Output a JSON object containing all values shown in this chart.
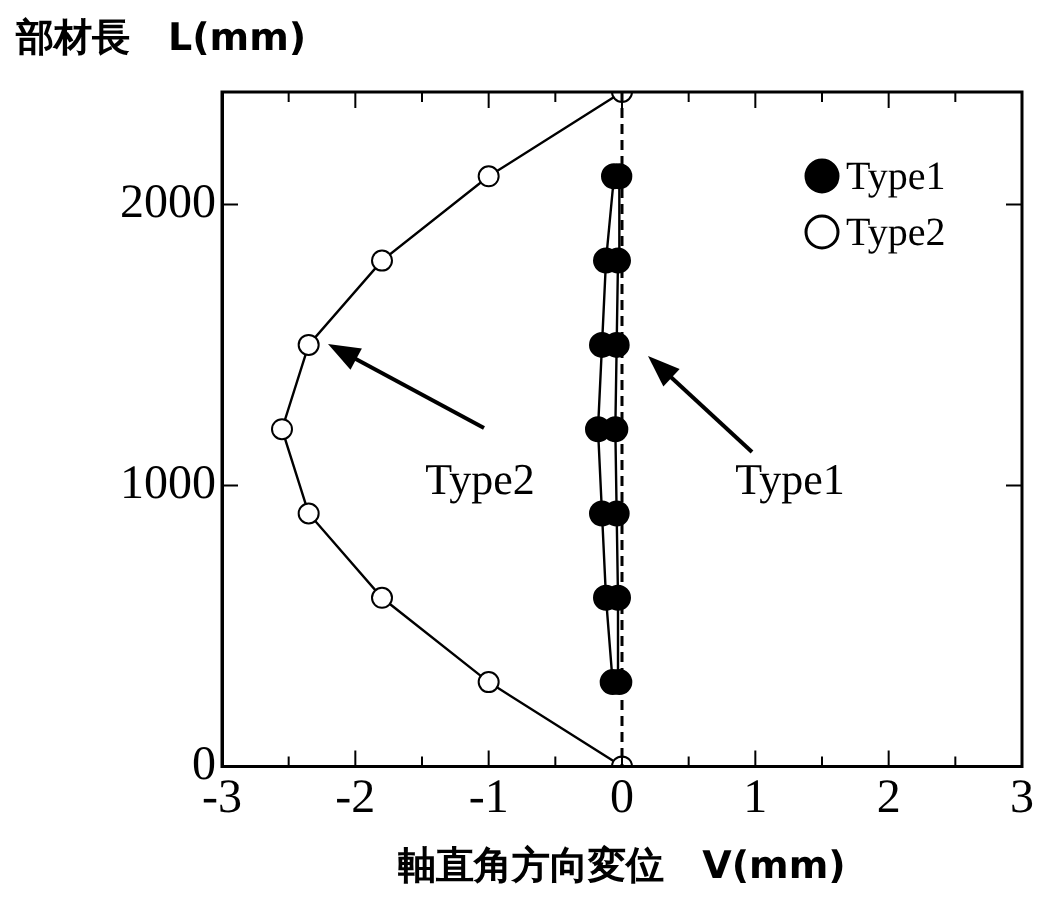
{
  "chart_data": {
    "type": "line",
    "xlabel": "軸直角方向変位　V(mm)",
    "ylabel": "部材長　L(mm)",
    "xlim": [
      -3,
      3
    ],
    "xticks": [
      -3,
      {
        "value": -2.5,
        "label": null
      },
      -2,
      {
        "value": -1.5,
        "label": null
      },
      -1,
      {
        "value": -0.5,
        "label": null
      },
      0,
      {
        "value": 0.5,
        "label": null
      },
      1,
      {
        "value": 1.5,
        "label": null
      },
      2,
      {
        "value": 2.5,
        "label": null
      },
      3
    ],
    "ylim": [
      0,
      2400
    ],
    "yticks": [
      0,
      1000,
      2000
    ],
    "grid": false,
    "legend": "top right",
    "marker": "circle",
    "line_style": "solid",
    "series": [
      {
        "name": "Type1",
        "color": "#000000",
        "x": [
          -0.07,
          -0.12,
          -0.15,
          -0.18,
          -0.15,
          -0.12,
          -0.06
        ],
        "values": [
          300,
          600,
          900,
          1200,
          1500,
          1800,
          2100
        ]
      },
      {
        "color": "#000000",
        "x": [
          -0.02,
          -0.03,
          -0.04,
          -0.05,
          -0.04,
          -0.03,
          -0.02
        ],
        "values": [
          300,
          600,
          900,
          1200,
          1500,
          1800,
          2100
        ]
      },
      {
        "name": "Type2",
        "color": "#ffffff",
        "x": [
          0,
          -1,
          -1.8,
          -2.35,
          -2.55,
          -2.35,
          -1.8,
          -1,
          0
        ],
        "values": [
          0,
          300,
          600,
          900,
          1200,
          1500,
          1800,
          2100,
          2400
        ]
      }
    ],
    "ref_lines": [
      {
        "axis": "x",
        "value": 0,
        "line_style": "dashed"
      }
    ],
    "annotations": [
      "Type2",
      "Type1"
    ]
  }
}
